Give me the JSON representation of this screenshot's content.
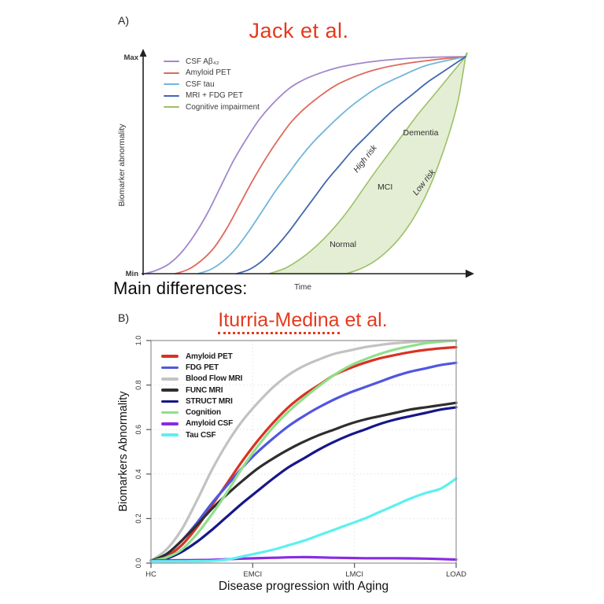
{
  "accent_red": "#e5391d",
  "panel_a_header": {
    "label": "A)",
    "title": "Jack et al."
  },
  "divider_text": "Main differences:",
  "panel_b_header": {
    "label": "B)",
    "title_main": "Iturria-Medina",
    "title_rest": " et al."
  },
  "chart_data": [
    {
      "type": "line",
      "panel": "A",
      "title": "Jack et al.",
      "xlabel": "Time",
      "ylabel": "Biomarker abnormality",
      "y_range": [
        "Min",
        "Max"
      ],
      "grid": false,
      "legend_position": "top-left",
      "series": [
        {
          "name": "CSF Aβ₄₂",
          "color": "#a287ca",
          "width": 1.8,
          "points": [
            [
              0.005,
              0
            ],
            [
              0.04,
              0.015
            ],
            [
              0.08,
              0.045
            ],
            [
              0.12,
              0.1
            ],
            [
              0.16,
              0.18
            ],
            [
              0.2,
              0.28
            ],
            [
              0.24,
              0.4
            ],
            [
              0.28,
              0.52
            ],
            [
              0.32,
              0.62
            ],
            [
              0.36,
              0.71
            ],
            [
              0.4,
              0.78
            ],
            [
              0.45,
              0.85
            ],
            [
              0.5,
              0.895
            ],
            [
              0.56,
              0.93
            ],
            [
              0.62,
              0.955
            ],
            [
              0.7,
              0.975
            ],
            [
              0.8,
              0.99
            ],
            [
              0.9,
              0.997
            ],
            [
              1,
              1
            ]
          ]
        },
        {
          "name": "Amyloid PET",
          "color": "#e0685c",
          "width": 1.8,
          "points": [
            [
              0.1,
              0
            ],
            [
              0.14,
              0.02
            ],
            [
              0.18,
              0.06
            ],
            [
              0.22,
              0.12
            ],
            [
              0.26,
              0.21
            ],
            [
              0.3,
              0.32
            ],
            [
              0.34,
              0.43
            ],
            [
              0.38,
              0.53
            ],
            [
              0.42,
              0.62
            ],
            [
              0.46,
              0.7
            ],
            [
              0.5,
              0.76
            ],
            [
              0.55,
              0.82
            ],
            [
              0.6,
              0.87
            ],
            [
              0.66,
              0.91
            ],
            [
              0.72,
              0.94
            ],
            [
              0.8,
              0.965
            ],
            [
              0.9,
              0.985
            ],
            [
              1,
              1
            ]
          ]
        },
        {
          "name": "CSF tau",
          "color": "#72b5da",
          "width": 1.8,
          "points": [
            [
              0.17,
              0
            ],
            [
              0.21,
              0.02
            ],
            [
              0.25,
              0.06
            ],
            [
              0.29,
              0.12
            ],
            [
              0.33,
              0.2
            ],
            [
              0.37,
              0.29
            ],
            [
              0.41,
              0.38
            ],
            [
              0.45,
              0.46
            ],
            [
              0.49,
              0.54
            ],
            [
              0.53,
              0.61
            ],
            [
              0.57,
              0.67
            ],
            [
              0.62,
              0.74
            ],
            [
              0.67,
              0.8
            ],
            [
              0.73,
              0.86
            ],
            [
              0.8,
              0.91
            ],
            [
              0.88,
              0.96
            ],
            [
              1,
              1
            ]
          ]
        },
        {
          "name": "MRI + FDG PET",
          "color": "#4266ae",
          "width": 1.8,
          "points": [
            [
              0.29,
              0
            ],
            [
              0.33,
              0.02
            ],
            [
              0.37,
              0.06
            ],
            [
              0.41,
              0.12
            ],
            [
              0.45,
              0.19
            ],
            [
              0.49,
              0.27
            ],
            [
              0.53,
              0.35
            ],
            [
              0.57,
              0.43
            ],
            [
              0.61,
              0.5
            ],
            [
              0.65,
              0.57
            ],
            [
              0.69,
              0.63
            ],
            [
              0.73,
              0.69
            ],
            [
              0.78,
              0.76
            ],
            [
              0.83,
              0.82
            ],
            [
              0.88,
              0.88
            ],
            [
              0.93,
              0.93
            ],
            [
              1,
              1
            ]
          ]
        }
      ],
      "band": {
        "name": "Cognitive impairment",
        "legend_label": "Cognitive impairment",
        "legend_color": "#9cc167",
        "fill": "#e4eed4",
        "stroke": "#9cc167",
        "left": [
          [
            0.39,
            0
          ],
          [
            0.44,
            0.025
          ],
          [
            0.48,
            0.06
          ],
          [
            0.52,
            0.105
          ],
          [
            0.56,
            0.16
          ],
          [
            0.6,
            0.225
          ],
          [
            0.64,
            0.3
          ],
          [
            0.68,
            0.385
          ],
          [
            0.72,
            0.47
          ],
          [
            0.76,
            0.55
          ],
          [
            0.8,
            0.63
          ],
          [
            0.85,
            0.73
          ],
          [
            0.9,
            0.82
          ],
          [
            0.95,
            0.91
          ],
          [
            1,
            1
          ]
        ],
        "right": [
          [
            0.63,
            0
          ],
          [
            0.67,
            0.02
          ],
          [
            0.71,
            0.05
          ],
          [
            0.75,
            0.095
          ],
          [
            0.79,
            0.155
          ],
          [
            0.83,
            0.235
          ],
          [
            0.87,
            0.34
          ],
          [
            0.9,
            0.44
          ],
          [
            0.93,
            0.56
          ],
          [
            0.96,
            0.7
          ],
          [
            0.98,
            0.82
          ],
          [
            1,
            1
          ]
        ],
        "labels": {
          "dementia": "Dementia",
          "mci": "MCI",
          "normal": "Normal",
          "high_risk": "High risk",
          "low_risk": "Low risk"
        }
      }
    },
    {
      "type": "line",
      "panel": "B",
      "title": "Iturria-Medina et al.",
      "xlabel": "Disease progression with Aging",
      "ylabel": "Biomarkers Abnormality",
      "x_ticks": [
        "HC",
        "EMCI",
        "LMCI",
        "LOAD"
      ],
      "y_ticks": [
        "0.0",
        "0.2",
        "0.4",
        "0.6",
        "0.8",
        "1.0"
      ],
      "ylim": [
        0,
        1
      ],
      "grid": "dotted",
      "legend_position": "top-left",
      "series": [
        {
          "name": "Amyloid PET",
          "color": "#d93222",
          "width": 3.2,
          "points": [
            [
              0,
              0.01
            ],
            [
              0.05,
              0.03
            ],
            [
              0.1,
              0.08
            ],
            [
              0.15,
              0.16
            ],
            [
              0.2,
              0.26
            ],
            [
              0.25,
              0.36
            ],
            [
              0.3,
              0.46
            ],
            [
              0.35,
              0.55
            ],
            [
              0.4,
              0.63
            ],
            [
              0.45,
              0.7
            ],
            [
              0.5,
              0.755
            ],
            [
              0.55,
              0.8
            ],
            [
              0.6,
              0.845
            ],
            [
              0.65,
              0.875
            ],
            [
              0.7,
              0.9
            ],
            [
              0.75,
              0.92
            ],
            [
              0.8,
              0.935
            ],
            [
              0.85,
              0.948
            ],
            [
              0.9,
              0.958
            ],
            [
              0.95,
              0.965
            ],
            [
              1,
              0.97
            ]
          ]
        },
        {
          "name": "FDG PET",
          "color": "#5156e0",
          "width": 3.2,
          "points": [
            [
              0,
              0.01
            ],
            [
              0.05,
              0.04
            ],
            [
              0.1,
              0.1
            ],
            [
              0.15,
              0.18
            ],
            [
              0.2,
              0.27
            ],
            [
              0.25,
              0.35
            ],
            [
              0.3,
              0.43
            ],
            [
              0.35,
              0.5
            ],
            [
              0.4,
              0.56
            ],
            [
              0.45,
              0.615
            ],
            [
              0.5,
              0.66
            ],
            [
              0.55,
              0.7
            ],
            [
              0.6,
              0.735
            ],
            [
              0.65,
              0.765
            ],
            [
              0.7,
              0.79
            ],
            [
              0.75,
              0.815
            ],
            [
              0.8,
              0.84
            ],
            [
              0.85,
              0.86
            ],
            [
              0.9,
              0.875
            ],
            [
              0.95,
              0.89
            ],
            [
              1,
              0.9
            ]
          ]
        },
        {
          "name": "Blood Flow MRI",
          "color": "#c2c2c2",
          "width": 3.2,
          "points": [
            [
              0,
              0.01
            ],
            [
              0.05,
              0.06
            ],
            [
              0.1,
              0.15
            ],
            [
              0.15,
              0.28
            ],
            [
              0.2,
              0.42
            ],
            [
              0.25,
              0.54
            ],
            [
              0.3,
              0.64
            ],
            [
              0.35,
              0.72
            ],
            [
              0.4,
              0.79
            ],
            [
              0.45,
              0.845
            ],
            [
              0.5,
              0.885
            ],
            [
              0.55,
              0.915
            ],
            [
              0.6,
              0.94
            ],
            [
              0.65,
              0.955
            ],
            [
              0.7,
              0.97
            ],
            [
              0.75,
              0.98
            ],
            [
              0.8,
              0.988
            ],
            [
              0.9,
              0.997
            ],
            [
              1,
              1
            ]
          ]
        },
        {
          "name": "FUNC MRI",
          "color": "#2e2e2e",
          "width": 3.2,
          "points": [
            [
              0,
              0.01
            ],
            [
              0.05,
              0.04
            ],
            [
              0.1,
              0.1
            ],
            [
              0.15,
              0.17
            ],
            [
              0.2,
              0.245
            ],
            [
              0.25,
              0.31
            ],
            [
              0.3,
              0.37
            ],
            [
              0.35,
              0.425
            ],
            [
              0.4,
              0.47
            ],
            [
              0.45,
              0.51
            ],
            [
              0.5,
              0.545
            ],
            [
              0.55,
              0.575
            ],
            [
              0.6,
              0.6
            ],
            [
              0.65,
              0.625
            ],
            [
              0.7,
              0.645
            ],
            [
              0.75,
              0.66
            ],
            [
              0.8,
              0.675
            ],
            [
              0.85,
              0.69
            ],
            [
              0.9,
              0.7
            ],
            [
              0.95,
              0.71
            ],
            [
              1,
              0.72
            ]
          ]
        },
        {
          "name": "STRUCT MRI",
          "color": "#171689",
          "width": 3.2,
          "points": [
            [
              0,
              0.01
            ],
            [
              0.05,
              0.02
            ],
            [
              0.1,
              0.05
            ],
            [
              0.15,
              0.095
            ],
            [
              0.2,
              0.15
            ],
            [
              0.25,
              0.21
            ],
            [
              0.3,
              0.27
            ],
            [
              0.35,
              0.325
            ],
            [
              0.4,
              0.38
            ],
            [
              0.45,
              0.43
            ],
            [
              0.5,
              0.47
            ],
            [
              0.55,
              0.51
            ],
            [
              0.6,
              0.545
            ],
            [
              0.65,
              0.575
            ],
            [
              0.7,
              0.6
            ],
            [
              0.75,
              0.625
            ],
            [
              0.8,
              0.645
            ],
            [
              0.85,
              0.66
            ],
            [
              0.9,
              0.675
            ],
            [
              0.95,
              0.69
            ],
            [
              1,
              0.7
            ]
          ]
        },
        {
          "name": "Cognition",
          "color": "#8fdf8b",
          "width": 3.2,
          "points": [
            [
              0,
              0.01
            ],
            [
              0.05,
              0.025
            ],
            [
              0.1,
              0.06
            ],
            [
              0.15,
              0.13
            ],
            [
              0.2,
              0.22
            ],
            [
              0.25,
              0.32
            ],
            [
              0.3,
              0.43
            ],
            [
              0.35,
              0.525
            ],
            [
              0.4,
              0.61
            ],
            [
              0.45,
              0.68
            ],
            [
              0.5,
              0.74
            ],
            [
              0.55,
              0.795
            ],
            [
              0.6,
              0.845
            ],
            [
              0.65,
              0.885
            ],
            [
              0.7,
              0.915
            ],
            [
              0.75,
              0.94
            ],
            [
              0.8,
              0.96
            ],
            [
              0.85,
              0.975
            ],
            [
              0.9,
              0.988
            ],
            [
              0.95,
              0.995
            ],
            [
              1,
              1
            ]
          ]
        },
        {
          "name": "Amyloid CSF",
          "color": "#8a2be2",
          "width": 3.2,
          "points": [
            [
              0,
              0.012
            ],
            [
              0.1,
              0.013
            ],
            [
              0.2,
              0.015
            ],
            [
              0.3,
              0.02
            ],
            [
              0.4,
              0.024
            ],
            [
              0.5,
              0.027
            ],
            [
              0.6,
              0.024
            ],
            [
              0.7,
              0.022
            ],
            [
              0.8,
              0.022
            ],
            [
              0.9,
              0.02
            ],
            [
              1,
              0.016
            ]
          ]
        },
        {
          "name": "Tau CSF",
          "color": "#5df0f0",
          "width": 3.2,
          "points": [
            [
              0,
              0.008
            ],
            [
              0.1,
              0.008
            ],
            [
              0.2,
              0.01
            ],
            [
              0.25,
              0.016
            ],
            [
              0.3,
              0.03
            ],
            [
              0.35,
              0.045
            ],
            [
              0.4,
              0.06
            ],
            [
              0.45,
              0.08
            ],
            [
              0.5,
              0.1
            ],
            [
              0.55,
              0.125
            ],
            [
              0.6,
              0.15
            ],
            [
              0.65,
              0.175
            ],
            [
              0.7,
              0.2
            ],
            [
              0.75,
              0.23
            ],
            [
              0.8,
              0.26
            ],
            [
              0.85,
              0.29
            ],
            [
              0.9,
              0.315
            ],
            [
              0.95,
              0.335
            ],
            [
              1,
              0.38
            ]
          ]
        }
      ]
    }
  ]
}
